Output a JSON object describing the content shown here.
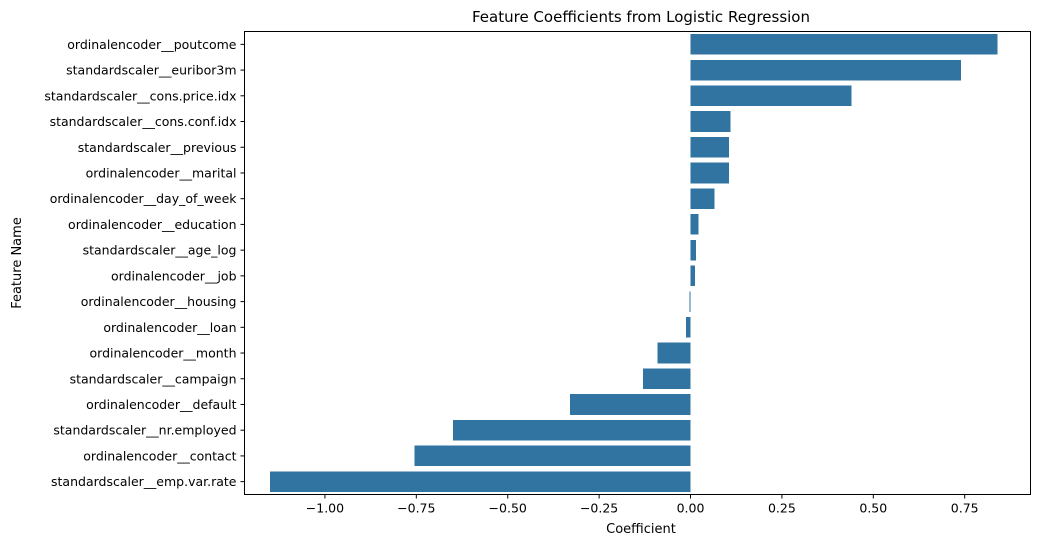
{
  "chart_data": {
    "type": "bar",
    "orientation": "horizontal",
    "title": "Feature Coefficients from Logistic Regression",
    "xlabel": "Coefficient",
    "ylabel": "Feature Name",
    "xlim": [
      -1.22,
      0.93
    ],
    "xticks": [
      -1.0,
      -0.75,
      -0.5,
      -0.25,
      0.0,
      0.25,
      0.5,
      0.75
    ],
    "xtick_labels": [
      "−1.00",
      "−0.75",
      "−0.50",
      "−0.25",
      "0.00",
      "0.25",
      "0.50",
      "0.75"
    ],
    "grid": false,
    "bar_color": "#3274a1",
    "categories": [
      "ordinalencoder__poutcome",
      "standardscaler__euribor3m",
      "standardscaler__cons.price.idx",
      "standardscaler__cons.conf.idx",
      "standardscaler__previous",
      "ordinalencoder__marital",
      "ordinalencoder__day_of_week",
      "ordinalencoder__education",
      "standardscaler__age_log",
      "ordinalencoder__job",
      "ordinalencoder__housing",
      "ordinalencoder__loan",
      "ordinalencoder__month",
      "standardscaler__campaign",
      "ordinalencoder__default",
      "standardscaler__nr.employed",
      "ordinalencoder__contact",
      "standardscaler__emp.var.rate"
    ],
    "values": [
      0.84,
      0.74,
      0.44,
      0.11,
      0.105,
      0.105,
      0.065,
      0.022,
      0.015,
      0.012,
      -0.003,
      -0.012,
      -0.09,
      -0.13,
      -0.33,
      -0.65,
      -0.755,
      -1.15
    ]
  }
}
